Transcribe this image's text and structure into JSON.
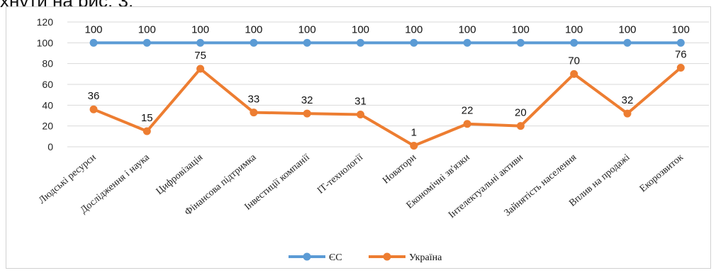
{
  "page": {
    "partial_text": "хнути на рис. 3."
  },
  "chart_data": {
    "type": "line",
    "categories": [
      "Людські ресурси",
      "Дослідження і наука",
      "Цифровізація",
      "Фінансова підтримка",
      "Інвестиції компанії",
      "ІТ-технології",
      "Новатори",
      "Економічні зв'язки",
      "Інтелектуальні активи",
      "Зайнятість населення",
      "Вплив на продажі",
      "Екорозвиток"
    ],
    "series": [
      {
        "name": "ЄС",
        "color": "#5b9bd5",
        "values": [
          100,
          100,
          100,
          100,
          100,
          100,
          100,
          100,
          100,
          100,
          100,
          100
        ]
      },
      {
        "name": "Україна",
        "color": "#ed7d31",
        "values": [
          36,
          15,
          75,
          33,
          32,
          31,
          1,
          22,
          20,
          70,
          32,
          76
        ]
      }
    ],
    "yticks": [
      "0",
      "20",
      "40",
      "60",
      "80",
      "100",
      "120"
    ],
    "ylim": [
      0,
      120
    ],
    "grid": true,
    "legend_position": "bottom"
  }
}
